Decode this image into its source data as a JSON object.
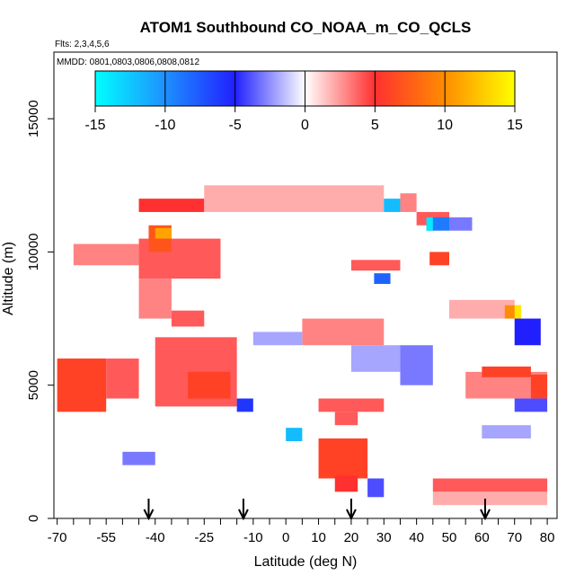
{
  "chart_data": {
    "type": "heatmap",
    "title": "ATOM1 Southbound CO_NOAA_m_CO_QCLS",
    "subtitle": "Flts: 2,3,4,5,6",
    "annotation": "MMDD: 0801,0803,0806,0808,0812",
    "xlabel": "Latitude (deg N)",
    "ylabel": "Altitude (m)",
    "xlim": [
      -71,
      83
    ],
    "ylim": [
      0,
      17500
    ],
    "xticks_minor": [
      -70,
      -65,
      -60,
      -55,
      -50,
      -45,
      -40,
      -35,
      -30,
      -25,
      -20,
      -15,
      -10,
      -5,
      0,
      5,
      10,
      15,
      20,
      25,
      30,
      35,
      40,
      45,
      50,
      55,
      60,
      65,
      70,
      75,
      80
    ],
    "xtick_labels": [
      "-70",
      "-55",
      "-40",
      "-25",
      "-10",
      "0",
      "10",
      "20",
      "30",
      "40",
      "50",
      "60",
      "70",
      "80"
    ],
    "ytick_labels": [
      "0",
      "5000",
      "10000",
      "15000"
    ],
    "colorbar": {
      "range": [
        -15,
        15
      ],
      "tick_labels": [
        "-15",
        "-10",
        "-5",
        "0",
        "5",
        "10",
        "15"
      ],
      "colors": [
        "#00ffff",
        "#1e90ff",
        "#2020ff",
        "#ffffff",
        "#ff3030",
        "#ff8c00",
        "#ffff00"
      ]
    },
    "arrows_latitude": [
      -42,
      -13,
      20,
      61
    ],
    "cells": [
      {
        "lat0": -70,
        "lat1": -55,
        "alt0": 4000,
        "alt1": 6000,
        "value": 6
      },
      {
        "lat0": -55,
        "lat1": -45,
        "alt0": 4500,
        "alt1": 6000,
        "value": 4
      },
      {
        "lat0": -40,
        "lat1": -15,
        "alt0": 4200,
        "alt1": 6800,
        "value": 4
      },
      {
        "lat0": -30,
        "lat1": -17,
        "alt0": 4500,
        "alt1": 5500,
        "value": 6
      },
      {
        "lat0": -45,
        "lat1": -20,
        "alt0": 9000,
        "alt1": 10500,
        "value": 4
      },
      {
        "lat0": -45,
        "lat1": -25,
        "alt0": 11500,
        "alt1": 12000,
        "value": 5
      },
      {
        "lat0": -42,
        "lat1": -35,
        "alt0": 10000,
        "alt1": 11000,
        "value": 7
      },
      {
        "lat0": -40,
        "lat1": -35,
        "alt0": 10500,
        "alt1": 10900,
        "value": 11
      },
      {
        "lat0": -65,
        "lat1": -45,
        "alt0": 9500,
        "alt1": 10300,
        "value": 3
      },
      {
        "lat0": -45,
        "lat1": -35,
        "alt0": 7500,
        "alt1": 9000,
        "value": 3
      },
      {
        "lat0": -35,
        "lat1": -25,
        "alt0": 7200,
        "alt1": 7800,
        "value": 4
      },
      {
        "lat0": 10,
        "lat1": 25,
        "alt0": 1500,
        "alt1": 3000,
        "value": 6
      },
      {
        "lat0": 15,
        "lat1": 22,
        "alt0": 1000,
        "alt1": 1600,
        "value": 5
      },
      {
        "lat0": 15,
        "lat1": 22,
        "alt0": 3500,
        "alt1": 4000,
        "value": 4
      },
      {
        "lat0": 10,
        "lat1": 30,
        "alt0": 4000,
        "alt1": 4500,
        "value": 4
      },
      {
        "lat0": 5,
        "lat1": 30,
        "alt0": 6500,
        "alt1": 7500,
        "value": 3
      },
      {
        "lat0": 45,
        "lat1": 80,
        "alt0": 1000,
        "alt1": 1500,
        "value": 4
      },
      {
        "lat0": 45,
        "lat1": 80,
        "alt0": 500,
        "alt1": 1000,
        "value": 2
      },
      {
        "lat0": 55,
        "lat1": 80,
        "alt0": 4500,
        "alt1": 5500,
        "value": 3
      },
      {
        "lat0": 60,
        "lat1": 75,
        "alt0": 5300,
        "alt1": 5700,
        "value": 6
      },
      {
        "lat0": 75,
        "lat1": 80,
        "alt0": 4500,
        "alt1": 5400,
        "value": 6
      },
      {
        "lat0": 50,
        "lat1": 70,
        "alt0": 7500,
        "alt1": 8200,
        "value": 2
      },
      {
        "lat0": 67,
        "lat1": 72,
        "alt0": 7500,
        "alt1": 8000,
        "value": 10
      },
      {
        "lat0": 70,
        "lat1": 72,
        "alt0": 7500,
        "alt1": 8000,
        "value": 14
      },
      {
        "lat0": 44,
        "lat1": 50,
        "alt0": 9500,
        "alt1": 10000,
        "value": 6
      },
      {
        "lat0": 20,
        "lat1": 35,
        "alt0": 9300,
        "alt1": 9700,
        "value": 4
      },
      {
        "lat0": 40,
        "lat1": 50,
        "alt0": 11000,
        "alt1": 11500,
        "value": 4
      },
      {
        "lat0": 35,
        "lat1": 40,
        "alt0": 11500,
        "alt1": 12200,
        "value": 3
      },
      {
        "lat0": -25,
        "lat1": 30,
        "alt0": 11500,
        "alt1": 12500,
        "value": 2
      },
      {
        "lat0": 30,
        "lat1": 35,
        "alt0": 11500,
        "alt1": 12000,
        "value": -12
      },
      {
        "lat0": 43,
        "lat1": 50,
        "alt0": 10800,
        "alt1": 11300,
        "value": -9
      },
      {
        "lat0": 43,
        "lat1": 45,
        "alt0": 10800,
        "alt1": 11300,
        "value": -14
      },
      {
        "lat0": 50,
        "lat1": 57,
        "alt0": 10800,
        "alt1": 11300,
        "value": -3
      },
      {
        "lat0": 27,
        "lat1": 32,
        "alt0": 8800,
        "alt1": 9200,
        "value": -8
      },
      {
        "lat0": 0,
        "lat1": 5,
        "alt0": 2900,
        "alt1": 3400,
        "value": -12
      },
      {
        "lat0": -15,
        "lat1": -10,
        "alt0": 4000,
        "alt1": 4500,
        "value": -6
      },
      {
        "lat0": 35,
        "lat1": 45,
        "alt0": 5000,
        "alt1": 6500,
        "value": -3
      },
      {
        "lat0": 20,
        "lat1": 35,
        "alt0": 5500,
        "alt1": 6500,
        "value": -2
      },
      {
        "lat0": -10,
        "lat1": 5,
        "alt0": 6500,
        "alt1": 7000,
        "value": -2
      },
      {
        "lat0": 70,
        "lat1": 78,
        "alt0": 6500,
        "alt1": 7500,
        "value": -5
      },
      {
        "lat0": 70,
        "lat1": 80,
        "alt0": 4000,
        "alt1": 4500,
        "value": -4
      },
      {
        "lat0": -50,
        "lat1": -40,
        "alt0": 2000,
        "alt1": 2500,
        "value": -3
      },
      {
        "lat0": 25,
        "lat1": 30,
        "alt0": 800,
        "alt1": 1500,
        "value": -4
      },
      {
        "lat0": 60,
        "lat1": 75,
        "alt0": 3000,
        "alt1": 3500,
        "value": -2
      }
    ]
  }
}
